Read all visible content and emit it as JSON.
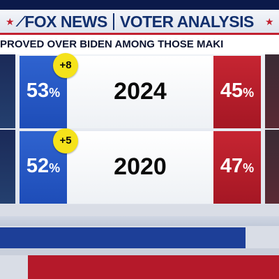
{
  "header": {
    "network": "FOX NEWS",
    "segment": "VOTER ANALYSIS",
    "star_left": "★",
    "star_right": "★"
  },
  "headline": {
    "text": "PROVED OVER BIDEN AMONG THOSE MAKI"
  },
  "rows": [
    {
      "year": "2024",
      "left_pct": "53",
      "right_pct": "45",
      "change": "+8"
    },
    {
      "year": "2020",
      "left_pct": "52",
      "right_pct": "47",
      "change": "+5"
    }
  ],
  "unit": "%",
  "colors": {
    "democrat_blue": "#2f63cf",
    "republican_red": "#c62532",
    "change_badge": "#f5e21a",
    "brand_navy": "#12306e"
  },
  "icons": {
    "logo_mark": "fox-logo-icon",
    "star": "star-icon"
  }
}
